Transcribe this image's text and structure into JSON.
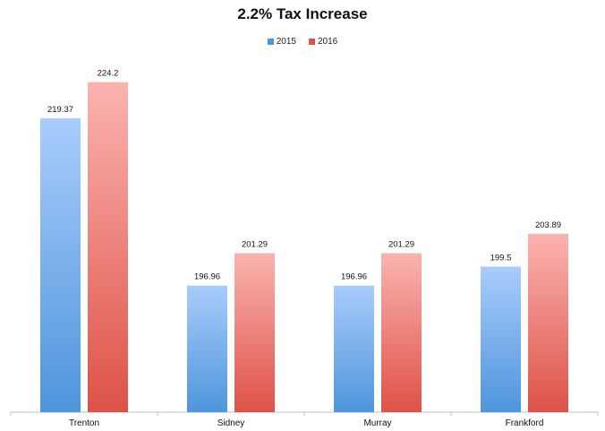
{
  "chart_data": {
    "type": "bar",
    "title": "2.2% Tax Increase",
    "categories": [
      "Trenton",
      "Sidney",
      "Murray",
      "Frankford"
    ],
    "series": [
      {
        "name": "2015",
        "values": [
          219.37,
          196.96,
          196.96,
          199.5
        ],
        "value_labels": [
          "219.37",
          "196.96",
          "196.96",
          "199.5"
        ],
        "color_top": "#a9ccfb",
        "color_bottom": "#4e95dc"
      },
      {
        "name": "2016",
        "values": [
          224.2,
          201.29,
          201.29,
          203.89
        ],
        "value_labels": [
          "224.2",
          "201.29",
          "201.29",
          "203.89"
        ],
        "color_top": "#fbb3b0",
        "color_bottom": "#dd5248"
      }
    ],
    "xlabel": "",
    "ylabel": "",
    "ylim": [
      180,
      228
    ],
    "grid": false,
    "legend": "top-center",
    "axis_color": "#bfbfbf"
  }
}
